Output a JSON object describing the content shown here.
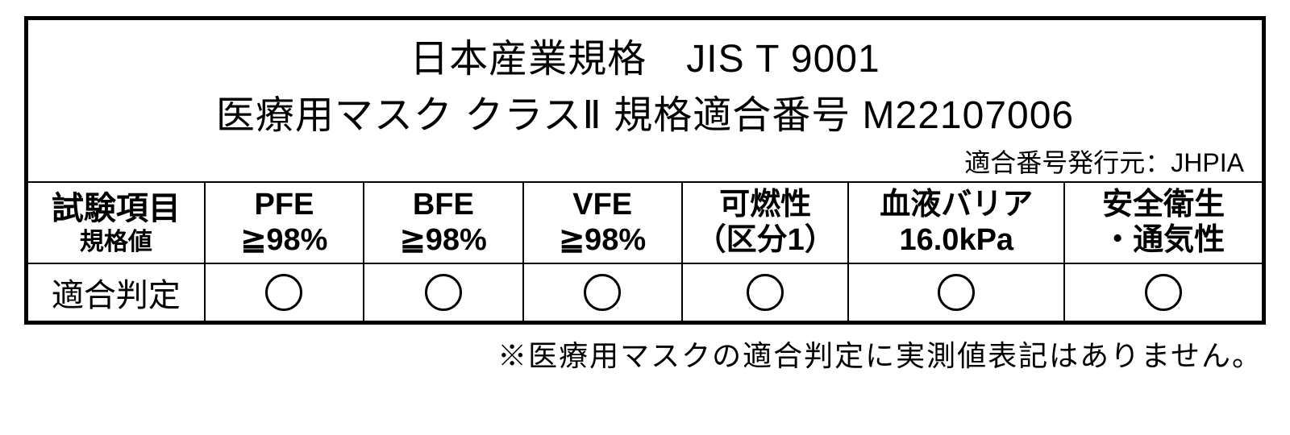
{
  "header": {
    "line1": "日本産業規格　JIS T 9001",
    "line2": "医療用マスク クラスⅡ 規格適合番号 M22107006",
    "issuer": "適合番号発行元：JHPIA"
  },
  "table": {
    "row1_label_main": "試験項目",
    "row1_label_sub": "規格値",
    "row2_label": "適合判定",
    "columns": [
      {
        "main": "PFE",
        "sub": "≧98%",
        "pass": true
      },
      {
        "main": "BFE",
        "sub": "≧98%",
        "pass": true
      },
      {
        "main": "VFE",
        "sub": "≧98%",
        "pass": true
      },
      {
        "main": "可燃性",
        "sub": "（区分1）",
        "pass": true
      },
      {
        "main": "血液バリア",
        "sub": "16.0kPa",
        "pass": true
      },
      {
        "main": "安全衛生",
        "sub": "・通気性",
        "pass": true
      }
    ]
  },
  "footnote": "※医療用マスクの適合判定に実測値表記はありません。",
  "style": {
    "border_color": "#000000",
    "background_color": "#ffffff",
    "text_color": "#000000",
    "col_widths_pct": [
      14.3,
      12.9,
      12.9,
      12.9,
      13.5,
      17.5,
      16.0
    ]
  }
}
